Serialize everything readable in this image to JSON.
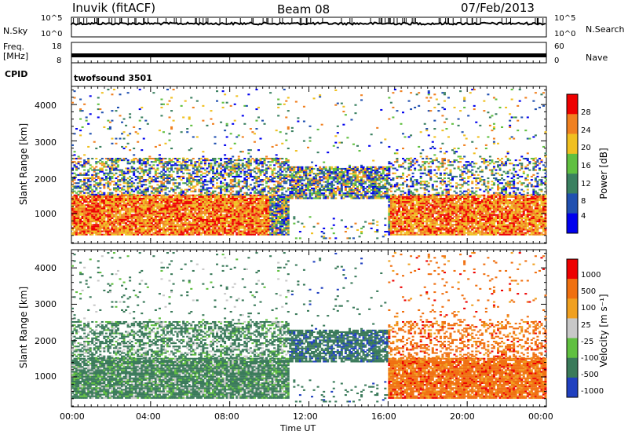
{
  "header": {
    "station": "Inuvik (fitACF)",
    "beam": "Beam 08",
    "date": "07/Feb/2013"
  },
  "top_panels": {
    "nsky_label": "N.Sky",
    "nsky_ticks": [
      "10^5",
      "10^0"
    ],
    "nsearch_label": "N.Search",
    "nsearch_ticks": [
      "10^5",
      "10^0"
    ],
    "freq_label": "Freq.",
    "freq_unit": "[MHz]",
    "freq_ticks": [
      "18",
      "8"
    ],
    "nave_label": "Nave",
    "nave_ticks": [
      "60",
      "0"
    ],
    "cpid_label": "CPID",
    "cpid_value": "twofsound 3501"
  },
  "chart_data": [
    {
      "type": "heatmap",
      "panel": "power",
      "ylabel": "Slant Range [km]",
      "yticks": [
        "4000",
        "3000",
        "2000",
        "1000"
      ],
      "ylim": [
        180,
        4500
      ],
      "x_ticks": [
        "00:00",
        "04:00",
        "08:00",
        "12:00",
        "16:00",
        "20:00",
        "00:00"
      ],
      "colorbar_label": "Power [dB]",
      "colorbar_ticks": [
        "28",
        "24",
        "20",
        "16",
        "12",
        "8",
        "4"
      ],
      "colors": [
        "#0000ee",
        "#2050b0",
        "#3a8060",
        "#60c040",
        "#f0c020",
        "#f08020",
        "#ee0000"
      ]
    },
    {
      "type": "heatmap",
      "panel": "velocity",
      "ylabel": "Slant Range [km]",
      "yticks": [
        "4000",
        "3000",
        "2000",
        "1000"
      ],
      "ylim": [
        180,
        4500
      ],
      "x_ticks": [
        "00:00",
        "04:00",
        "08:00",
        "12:00",
        "16:00",
        "20:00",
        "00:00"
      ],
      "xlabel": "Time UT",
      "colorbar_label": "Velocity [m s⁻¹]",
      "colorbar_ticks": [
        "1000",
        "500",
        "100",
        "25",
        "-25",
        "-100",
        "-500",
        "-1000"
      ],
      "colors": [
        "#2040c0",
        "#3a7a5a",
        "#60c040",
        "#c8c8c8",
        "#f0a020",
        "#f07010",
        "#ee0000"
      ]
    }
  ]
}
